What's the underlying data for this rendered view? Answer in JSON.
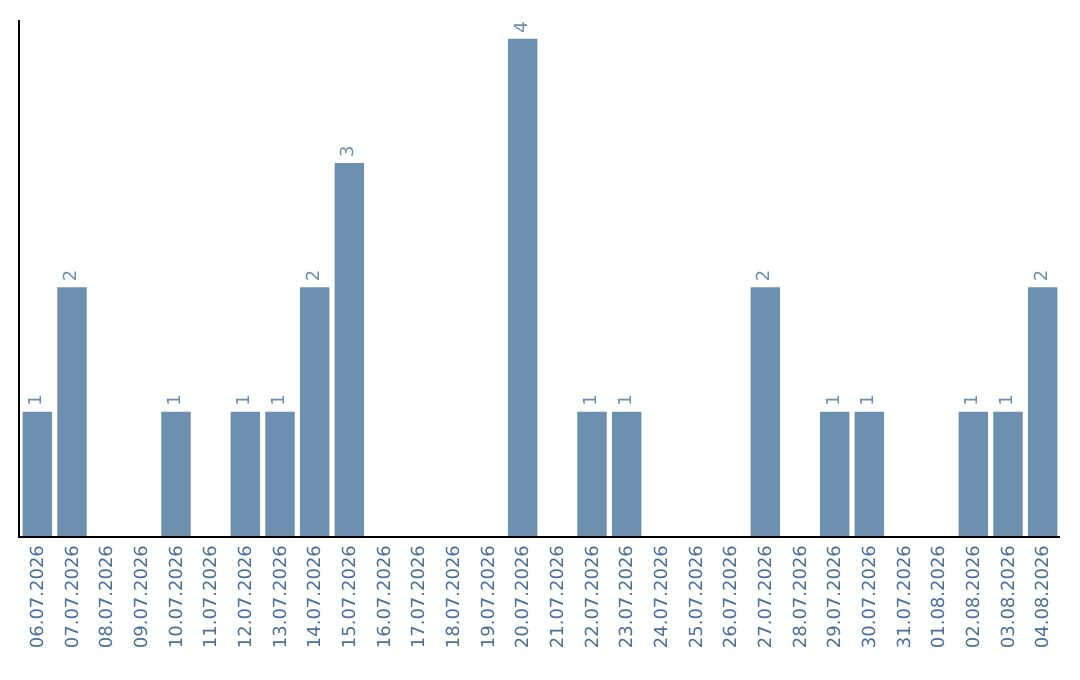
{
  "chart_data": {
    "type": "bar",
    "categories": [
      "06.07.2026",
      "07.07.2026",
      "08.07.2026",
      "09.07.2026",
      "10.07.2026",
      "11.07.2026",
      "12.07.2026",
      "13.07.2026",
      "14.07.2026",
      "15.07.2026",
      "16.07.2026",
      "17.07.2026",
      "18.07.2026",
      "19.07.2026",
      "20.07.2026",
      "21.07.2026",
      "22.07.2026",
      "23.07.2026",
      "24.07.2026",
      "25.07.2026",
      "26.07.2026",
      "27.07.2026",
      "28.07.2026",
      "29.07.2026",
      "30.07.2026",
      "31.07.2026",
      "01.08.2026",
      "02.08.2026",
      "03.08.2026",
      "04.08.2026"
    ],
    "values": [
      1,
      2,
      0,
      0,
      1,
      0,
      1,
      1,
      2,
      3,
      0,
      0,
      0,
      0,
      4,
      0,
      1,
      1,
      0,
      0,
      0,
      2,
      0,
      1,
      1,
      0,
      0,
      1,
      1,
      2
    ],
    "value_labels": [
      "1",
      "2",
      null,
      null,
      "1",
      null,
      "1",
      "1",
      "2",
      "3",
      null,
      null,
      null,
      null,
      "4",
      null,
      "1",
      "1",
      null,
      null,
      null,
      "2",
      null,
      "1",
      "1",
      null,
      null,
      "1",
      "1",
      "2"
    ],
    "color": "#6d8fb0",
    "ylim": [
      0,
      4.15
    ],
    "tick_labels": "x"
  }
}
